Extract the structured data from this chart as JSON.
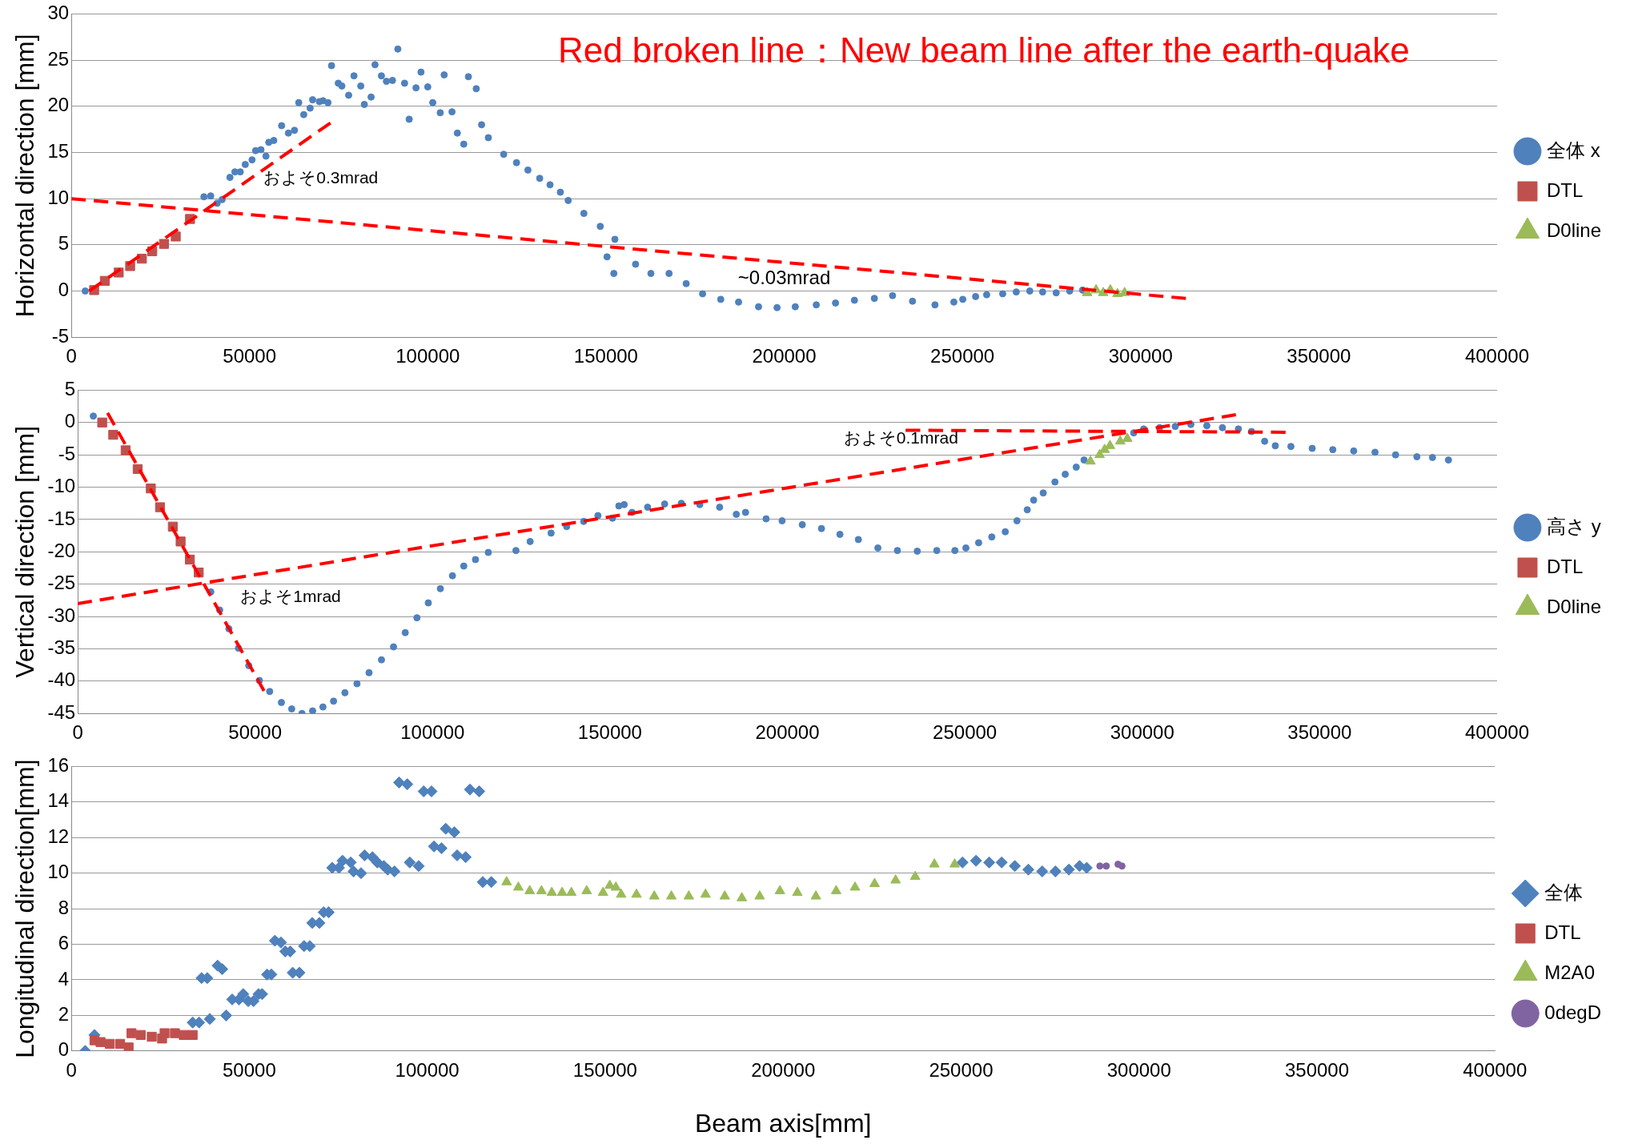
{
  "chart_data": [
    {
      "type": "scatter",
      "ylabel": "Horizontal direction [mm]",
      "xlim": [
        0,
        400000
      ],
      "xticks": [
        0,
        50000,
        100000,
        150000,
        200000,
        250000,
        300000,
        350000,
        400000
      ],
      "ylim": [
        -5,
        30
      ],
      "yticks": [
        -5,
        0,
        5,
        10,
        15,
        20,
        25,
        30
      ],
      "grid": "y",
      "legend": "right",
      "annotations": [
        "Red broken line：New beam line after the earth-quake",
        "およそ0.3mrad",
        "~0.03mrad"
      ],
      "series": [
        {
          "name": "全体 x",
          "color": "#4f81bd",
          "marker": "circle",
          "x": [
            3900,
            37200,
            39100,
            40900,
            42300,
            44500,
            45900,
            47400,
            48800,
            50700,
            51700,
            53200,
            54600,
            55400,
            56800,
            59000,
            60900,
            62600,
            63800,
            65200,
            67000,
            67700,
            69600,
            70600,
            72000,
            73000,
            74900,
            75900,
            77800,
            79300,
            81200,
            82200,
            84100,
            85200,
            87000,
            88400,
            90100,
            91600,
            93500,
            94800,
            96700,
            98100,
            100000,
            101400,
            103500,
            104600,
            106800,
            108300,
            110100,
            111400,
            113600,
            115100,
            117000,
            121300,
            124900,
            128100,
            131400,
            134300,
            137200,
            139400,
            143800,
            148400,
            150300,
            152200,
            152500,
            158300,
            162600,
            167700,
            172500,
            177100,
            182200,
            187200,
            192800,
            198000,
            203100,
            209000,
            214400,
            219700,
            225300,
            230400,
            236000,
            242300,
            247600,
            250100,
            253700,
            256800,
            261300,
            265100,
            268900,
            272500,
            276300,
            280100,
            283700
          ],
          "values": [
            0,
            10.2,
            10.3,
            9.5,
            9.9,
            12.3,
            12.9,
            12.9,
            13.7,
            14.2,
            15.2,
            15.3,
            14.6,
            16.1,
            16.3,
            17.9,
            17.1,
            17.4,
            20.4,
            19.1,
            19.8,
            20.7,
            20.5,
            20.6,
            20.4,
            24.4,
            22.5,
            22.2,
            21.2,
            23.3,
            22.2,
            20.2,
            21,
            24.5,
            23.3,
            22.7,
            22.8,
            26.2,
            22.5,
            18.6,
            22,
            23.7,
            22.1,
            20.4,
            19.3,
            23.4,
            19.4,
            17.1,
            15.9,
            23.2,
            21.9,
            18,
            16.6,
            14.8,
            13.9,
            13.1,
            12.2,
            11.5,
            10.7,
            9.8,
            8.4,
            7,
            3.7,
            1.9,
            5.6,
            2.9,
            1.9,
            1.9,
            0.8,
            -0.3,
            -0.9,
            -1.2,
            -1.7,
            -1.8,
            -1.7,
            -1.5,
            -1.3,
            -1,
            -0.8,
            -0.5,
            -1.1,
            -1.5,
            -1.2,
            -0.9,
            -0.6,
            -0.4,
            -0.3,
            -0.1,
            0,
            -0.1,
            -0.2,
            0,
            0.1
          ]
        },
        {
          "name": "DTL",
          "color": "#c0504d",
          "marker": "square",
          "x": [
            6400,
            9400,
            13300,
            16500,
            19800,
            22700,
            26000,
            29300,
            33300
          ],
          "values": [
            0.1,
            1.1,
            2,
            2.7,
            3.5,
            4.3,
            5.1,
            5.9,
            7.8
          ]
        },
        {
          "name": "D0line",
          "color": "#9bbb59",
          "marker": "triangle",
          "x": [
            285000,
            287500,
            289500,
            291500,
            293500,
            295500
          ],
          "values": [
            -0.2,
            0.1,
            -0.2,
            0.1,
            -0.3,
            -0.2
          ]
        },
        {
          "type": "line",
          "color": "#ff0000",
          "line_style": "dashed",
          "marker": "none",
          "x": [
            5000,
            72700
          ],
          "values": [
            0,
            18.2
          ]
        },
        {
          "type": "line",
          "color": "#ff0000",
          "line_style": "dashed",
          "marker": "none",
          "x": [
            0,
            312700
          ],
          "values": [
            10,
            -0.8
          ]
        }
      ]
    },
    {
      "type": "scatter",
      "ylabel": "Vertical direction [mm]",
      "xlim": [
        0,
        400000
      ],
      "xticks": [
        0,
        50000,
        100000,
        150000,
        200000,
        250000,
        300000,
        350000,
        400000
      ],
      "ylim": [
        -45,
        5
      ],
      "yticks": [
        -45,
        -40,
        -35,
        -30,
        -25,
        -20,
        -15,
        -10,
        -5,
        0,
        5
      ],
      "grid": "y",
      "legend": "right",
      "annotations": [
        "およそ1mrad",
        "およそ0.1mrad"
      ],
      "series": [
        {
          "name": "高さ y",
          "color": "#4f81bd",
          "marker": "circle",
          "x": [
            4400,
            37500,
            40000,
            42600,
            45300,
            48200,
            51200,
            54100,
            57400,
            60300,
            63200,
            66200,
            69100,
            72100,
            75300,
            78700,
            82100,
            85600,
            89000,
            92300,
            95600,
            98800,
            102200,
            105600,
            108800,
            112100,
            115700,
            123500,
            127500,
            133400,
            137800,
            142600,
            146600,
            150700,
            152500,
            154000,
            156200,
            160600,
            165400,
            170100,
            175300,
            180900,
            185600,
            188200,
            194000,
            198500,
            204200,
            209600,
            214800,
            220000,
            225500,
            231000,
            236600,
            242100,
            247200,
            250300,
            253900,
            257600,
            261400,
            264700,
            267600,
            269400,
            272100,
            275400,
            278300,
            281400,
            283600,
            297600,
            300400,
            304900,
            309300,
            313700,
            318200,
            322600,
            327100,
            330800,
            334500,
            337500,
            341900,
            347900,
            353700,
            359600,
            365600,
            371400,
            377400,
            381800,
            386300
          ],
          "values": [
            1,
            -26.2,
            -29,
            -31.9,
            -34.9,
            -37.6,
            -39.9,
            -41.6,
            -43.3,
            -44.3,
            -45,
            -44.6,
            -44,
            -43.1,
            -41.8,
            -40.4,
            -38.7,
            -36.7,
            -34.7,
            -32.5,
            -30.2,
            -27.9,
            -25.7,
            -23.7,
            -22.2,
            -21.2,
            -20.1,
            -19.8,
            -18.4,
            -17.1,
            -16.1,
            -15.3,
            -14.4,
            -14.8,
            -12.9,
            -12.7,
            -13.9,
            -13.1,
            -12.6,
            -12.5,
            -12.7,
            -13.1,
            -14.2,
            -13.9,
            -14.9,
            -15.2,
            -15.8,
            -16.4,
            -17.3,
            -18.1,
            -19.4,
            -19.8,
            -19.9,
            -19.8,
            -19.8,
            -19.4,
            -18.6,
            -17.7,
            -16.9,
            -15.2,
            -13.5,
            -12,
            -10.9,
            -9.2,
            -8,
            -6.9,
            -5.8,
            -1.6,
            -1,
            -0.8,
            -0.6,
            -0.3,
            -0.5,
            -0.8,
            -1,
            -1.4,
            -2.9,
            -3.6,
            -3.7,
            -4,
            -4.2,
            -4.4,
            -4.6,
            -5,
            -5.3,
            -5.4,
            -5.8
          ]
        },
        {
          "name": "DTL",
          "color": "#c0504d",
          "marker": "square",
          "x": [
            6900,
            10000,
            13500,
            16900,
            20600,
            23200,
            26800,
            29000,
            31600,
            34100
          ],
          "values": [
            0,
            -1.9,
            -4.3,
            -7.2,
            -10.2,
            -13.1,
            -16.1,
            -18.4,
            -21.2,
            -23.2
          ]
        },
        {
          "name": "D0line",
          "color": "#9bbb59",
          "marker": "triangle",
          "x": [
            285400,
            288000,
            289400,
            290900,
            293800,
            295800
          ],
          "values": [
            -6,
            -5,
            -4.2,
            -3.6,
            -2.9,
            -2.5
          ]
        },
        {
          "type": "line",
          "color": "#ff0000",
          "line_style": "dashed",
          "marker": "none",
          "x": [
            8400,
            52500
          ],
          "values": [
            1.5,
            -41.5
          ]
        },
        {
          "type": "line",
          "color": "#ff0000",
          "line_style": "dashed",
          "marker": "none",
          "x": [
            0,
            326400
          ],
          "values": [
            -28,
            1.2
          ]
        },
        {
          "type": "line",
          "color": "#ff0000",
          "line_style": "dashed",
          "marker": "none",
          "x": [
            233300,
            340400
          ],
          "values": [
            -1.2,
            -1.5
          ]
        }
      ]
    },
    {
      "type": "scatter",
      "xlabel": "Beam axis[mm]",
      "ylabel": "Longitudinal direction[mm]",
      "xlim": [
        0,
        400000
      ],
      "xticks": [
        0,
        50000,
        100000,
        150000,
        200000,
        250000,
        300000,
        350000,
        400000
      ],
      "ylim": [
        0,
        16
      ],
      "yticks": [
        0,
        2,
        4,
        6,
        8,
        10,
        12,
        14,
        16
      ],
      "grid": "y",
      "legend": "right",
      "series": [
        {
          "name": "全体",
          "color": "#4f81bd",
          "marker": "diamond",
          "x": [
            3900,
            6500,
            34100,
            35900,
            36600,
            38200,
            38900,
            41100,
            42400,
            43500,
            45200,
            47100,
            48300,
            49700,
            51200,
            52600,
            53600,
            55000,
            56200,
            57200,
            58900,
            60100,
            61500,
            62200,
            64100,
            65400,
            67000,
            67700,
            69700,
            70900,
            72300,
            73300,
            75200,
            76200,
            78500,
            79300,
            81400,
            82400,
            84600,
            86000,
            87800,
            88900,
            90800,
            92100,
            94400,
            95100,
            97600,
            99000,
            101200,
            101900,
            104000,
            105200,
            107600,
            108400,
            110800,
            112000,
            114600,
            115600,
            118000,
            250400,
            254200,
            257900,
            261400,
            265100,
            268900,
            272800,
            276500,
            280300,
            283300,
            285300
          ],
          "values": [
            0,
            0.9,
            1.6,
            1.6,
            4.1,
            4.1,
            1.8,
            4.8,
            4.6,
            2,
            2.9,
            2.9,
            3.2,
            2.8,
            2.8,
            3.2,
            3.2,
            4.3,
            4.3,
            6.2,
            6.1,
            5.6,
            5.6,
            4.4,
            4.4,
            5.9,
            5.9,
            7.2,
            7.2,
            7.8,
            7.8,
            10.3,
            10.3,
            10.7,
            10.6,
            10.1,
            10,
            11,
            10.9,
            10.6,
            10.4,
            10.2,
            10.1,
            15.1,
            15,
            10.6,
            10.4,
            14.6,
            14.6,
            11.5,
            11.4,
            12.5,
            12.3,
            11,
            10.9,
            14.7,
            14.6,
            9.5,
            9.5,
            10.6,
            10.7,
            10.6,
            10.6,
            10.4,
            10.2,
            10.1,
            10.1,
            10.2,
            10.4,
            10.3
          ]
        },
        {
          "name": "DTL",
          "color": "#c0504d",
          "marker": "square",
          "x": [
            6500,
            8200,
            10800,
            13700,
            16100,
            16900,
            19500,
            22600,
            25500,
            26200,
            29100,
            31600,
            34100
          ],
          "values": [
            0.6,
            0.5,
            0.4,
            0.4,
            0.2,
            1,
            0.9,
            0.8,
            0.7,
            1,
            1,
            0.9,
            0.9
          ]
        },
        {
          "name": "M2A0",
          "color": "#9bbb59",
          "marker": "triangle",
          "x": [
            122300,
            125600,
            128800,
            132100,
            135000,
            137900,
            140500,
            144800,
            149400,
            151300,
            153000,
            154500,
            158800,
            163800,
            168600,
            173500,
            178200,
            183600,
            188400,
            193400,
            199100,
            204000,
            209200,
            214900,
            220200,
            225700,
            231600,
            237100,
            242500,
            248200
          ],
          "values": [
            9.5,
            9.2,
            9,
            9,
            8.9,
            8.9,
            8.9,
            9,
            8.9,
            9.3,
            9.2,
            8.8,
            8.8,
            8.7,
            8.7,
            8.7,
            8.8,
            8.7,
            8.6,
            8.7,
            9,
            8.9,
            8.7,
            9,
            9.2,
            9.4,
            9.6,
            9.8,
            10.5,
            10.5
          ]
        },
        {
          "name": "0degD",
          "color": "#8064a2",
          "marker": "circle",
          "x": [
            289000,
            290800,
            294100,
            295200
          ],
          "values": [
            10.4,
            10.4,
            10.5,
            10.4
          ]
        }
      ]
    }
  ]
}
